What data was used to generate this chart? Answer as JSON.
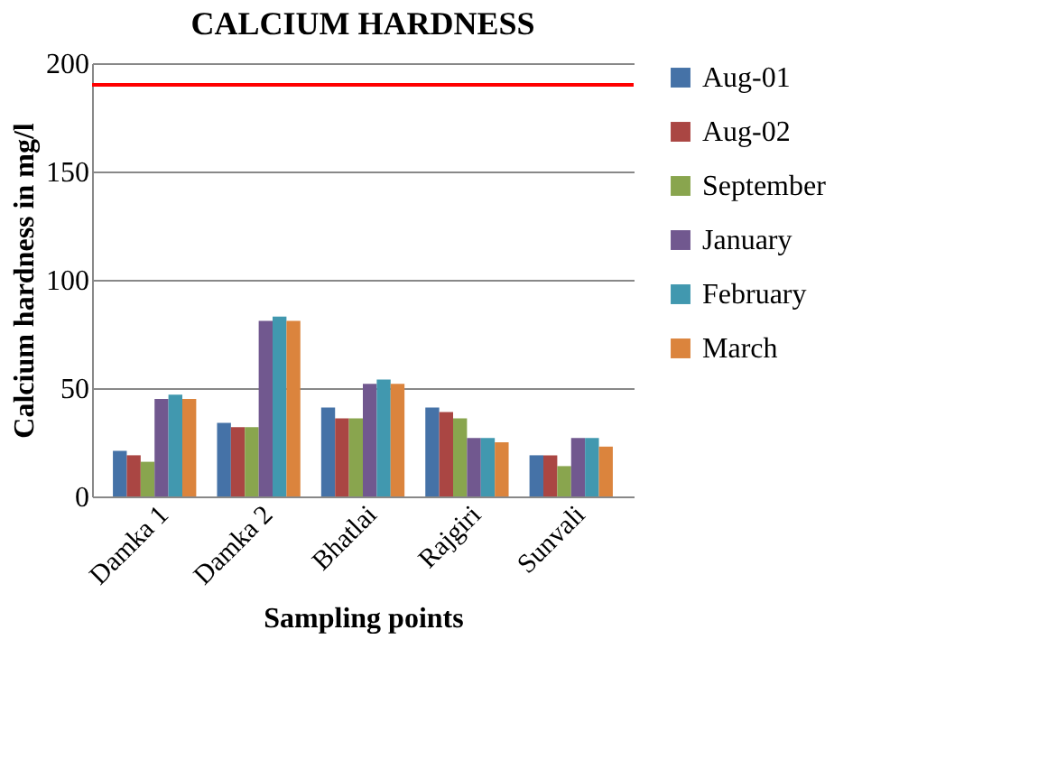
{
  "chart_data": {
    "type": "bar",
    "title": "CALCIUM  HARDNESS",
    "xlabel": "Sampling points",
    "ylabel": "Calcium hardness in mg/l",
    "categories": [
      "Damka 1",
      "Damka 2",
      "Bhatlai",
      "Rajgiri",
      "Sunvali"
    ],
    "series": [
      {
        "name": "Aug-01",
        "color": "#4572a7",
        "values": [
          21,
          34,
          41,
          41,
          19
        ]
      },
      {
        "name": "Aug-02",
        "color": "#aa4643",
        "values": [
          19,
          32,
          36,
          39,
          19
        ]
      },
      {
        "name": "September",
        "color": "#89a54e",
        "values": [
          16,
          32,
          36,
          36,
          14
        ]
      },
      {
        "name": "January",
        "color": "#71588f",
        "values": [
          45,
          81,
          52,
          27,
          27
        ]
      },
      {
        "name": "February",
        "color": "#4198af",
        "values": [
          47,
          83,
          54,
          27,
          27
        ]
      },
      {
        "name": "March",
        "color": "#db843d",
        "values": [
          45,
          81,
          52,
          25,
          23
        ]
      }
    ],
    "ylim": [
      0,
      200
    ],
    "yticks": [
      0,
      50,
      100,
      150,
      200
    ],
    "grid": "y",
    "legend": "right",
    "ref_lines": [
      {
        "axis": "y",
        "value": 190,
        "color": "#ff0000"
      }
    ]
  }
}
